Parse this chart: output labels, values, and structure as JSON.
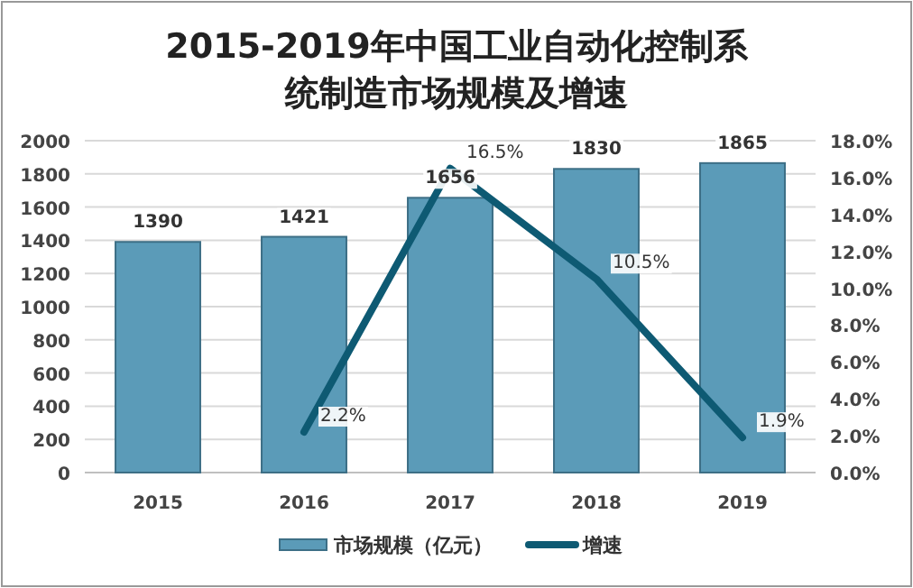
{
  "chart_data": {
    "type": "bar",
    "title": "2015-2019年中国工业自动化控制系统制造市场规模及增速",
    "categories": [
      "2015",
      "2016",
      "2017",
      "2018",
      "2019"
    ],
    "series": [
      {
        "name": "市场规模（亿元）",
        "type": "bar",
        "color": "#5b9bb8",
        "values": [
          1390,
          1421,
          1656,
          1830,
          1865
        ],
        "value_labels": [
          "1390",
          "1421",
          "1656",
          "1830",
          "1865"
        ]
      },
      {
        "name": "增速",
        "type": "line",
        "axis": "y2",
        "color": "#0e5a73",
        "values": [
          null,
          2.2,
          16.5,
          10.5,
          1.9
        ],
        "value_labels": [
          null,
          "2.2%",
          "16.5%",
          "10.5%",
          "1.9%"
        ]
      }
    ],
    "ylim": [
      0,
      2000
    ],
    "yticks": [
      0,
      200,
      400,
      600,
      800,
      1000,
      1200,
      1400,
      1600,
      1800,
      2000
    ],
    "y2lim": [
      0,
      18
    ],
    "y2ticks": [
      {
        "value": 0,
        "label": "0.0%"
      },
      {
        "value": 2,
        "label": "2.0%"
      },
      {
        "value": 4,
        "label": "4.0%"
      },
      {
        "value": 6,
        "label": "6.0%"
      },
      {
        "value": 8,
        "label": "8.0%"
      },
      {
        "value": 10,
        "label": "10.0%"
      },
      {
        "value": 12,
        "label": "12.0%"
      },
      {
        "value": 14,
        "label": "14.0%"
      },
      {
        "value": 16,
        "label": "16.0%"
      },
      {
        "value": 18,
        "label": "18.0%"
      }
    ],
    "grid": "y",
    "legend": "bottom",
    "marker": "none",
    "line_style": "solid"
  }
}
